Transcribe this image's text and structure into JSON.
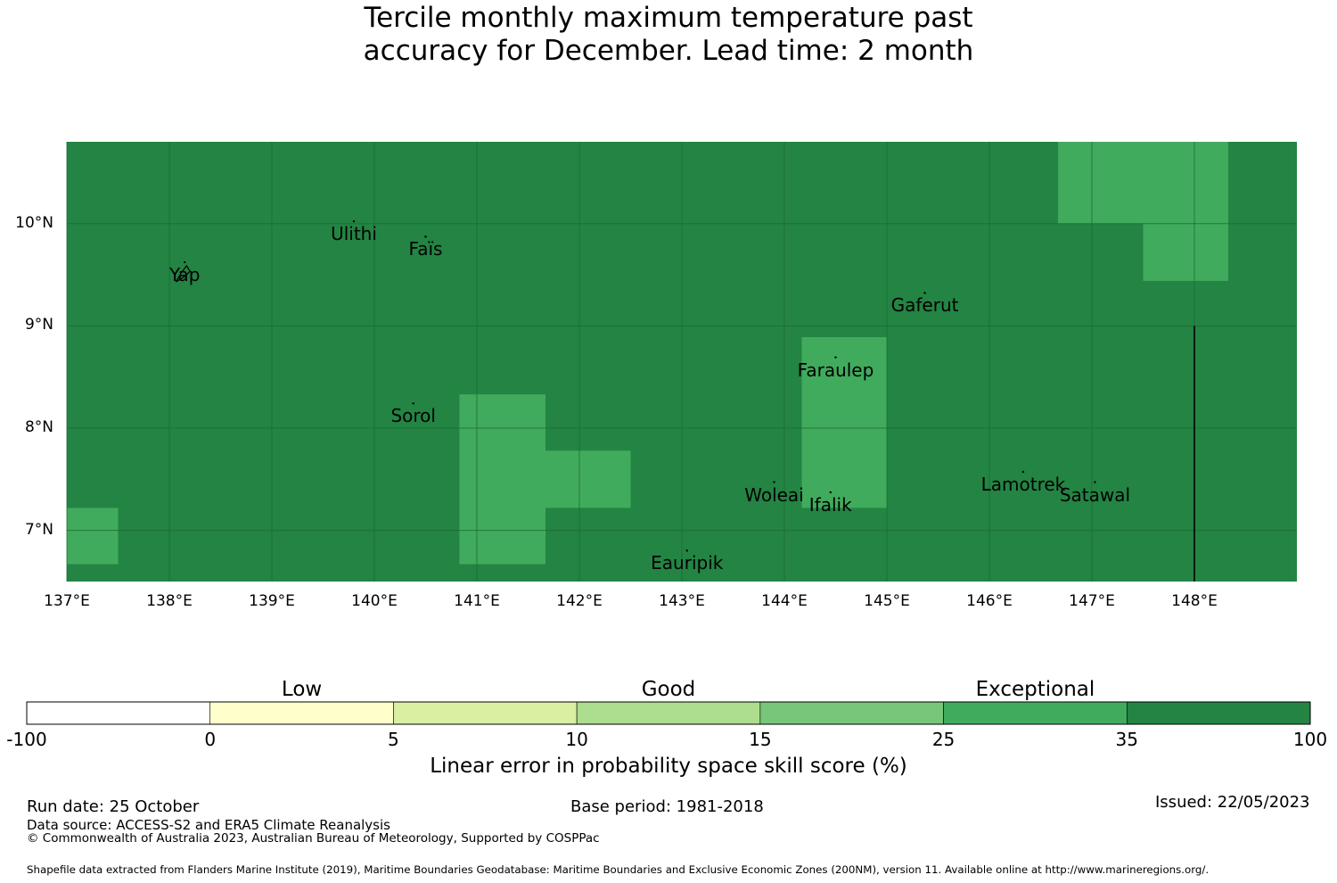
{
  "title": {
    "line1": "Tercile monthly maximum temperature past",
    "line2": "accuracy for December. Lead time: 2 month"
  },
  "map": {
    "lon_range": [
      137,
      149
    ],
    "lat_range": [
      6.5,
      10.8
    ],
    "lat_ticks": [
      {
        "value": 10,
        "label": "10°N"
      },
      {
        "value": 9,
        "label": "9°N"
      },
      {
        "value": 8,
        "label": "8°N"
      },
      {
        "value": 7,
        "label": "7°N"
      }
    ],
    "lon_ticks": [
      {
        "value": 137,
        "label": "137°E"
      },
      {
        "value": 138,
        "label": "138°E"
      },
      {
        "value": 139,
        "label": "139°E"
      },
      {
        "value": 140,
        "label": "140°E"
      },
      {
        "value": 141,
        "label": "141°E"
      },
      {
        "value": 142,
        "label": "142°E"
      },
      {
        "value": 143,
        "label": "143°E"
      },
      {
        "value": 144,
        "label": "144°E"
      },
      {
        "value": 145,
        "label": "145°E"
      },
      {
        "value": 146,
        "label": "146°E"
      },
      {
        "value": 147,
        "label": "147°E"
      },
      {
        "value": 148,
        "label": "148°E"
      }
    ],
    "background_category": "Exceptional (35 to 100)",
    "cells": [
      {
        "lon": [
          137.0,
          137.5
        ],
        "lat": [
          6.67,
          7.22
        ],
        "category": "25 to 35"
      },
      {
        "lon": [
          140.83,
          141.67
        ],
        "lat": [
          6.67,
          8.33
        ],
        "category": "25 to 35"
      },
      {
        "lon": [
          141.67,
          142.5
        ],
        "lat": [
          7.22,
          7.78
        ],
        "category": "25 to 35"
      },
      {
        "lon": [
          144.17,
          145.0
        ],
        "lat": [
          7.22,
          8.89
        ],
        "category": "25 to 35"
      },
      {
        "lon": [
          146.67,
          148.33
        ],
        "lat": [
          10.0,
          10.8
        ],
        "category": "25 to 35"
      },
      {
        "lon": [
          147.5,
          148.33
        ],
        "lat": [
          9.44,
          10.0
        ],
        "category": "25 to 35"
      }
    ],
    "boundary_line": {
      "lon": 148.0,
      "lat": [
        6.5,
        9.0
      ]
    },
    "places": [
      {
        "name": "Ulithi",
        "lon": 139.8,
        "lat": 9.9
      },
      {
        "name": "Faïs",
        "lon": 140.5,
        "lat": 9.75
      },
      {
        "name": "Yap",
        "lon": 138.15,
        "lat": 9.5
      },
      {
        "name": "Gaferut",
        "lon": 145.37,
        "lat": 9.2
      },
      {
        "name": "Faraulep",
        "lon": 144.5,
        "lat": 8.57
      },
      {
        "name": "Sorol",
        "lon": 140.38,
        "lat": 8.12
      },
      {
        "name": "Woleai",
        "lon": 143.9,
        "lat": 7.35
      },
      {
        "name": "Ifalik",
        "lon": 144.45,
        "lat": 7.25
      },
      {
        "name": "Lamotrek",
        "lon": 146.33,
        "lat": 7.45
      },
      {
        "name": "Satawal",
        "lon": 147.03,
        "lat": 7.35
      },
      {
        "name": "Eauripik",
        "lon": 143.05,
        "lat": 6.68
      }
    ]
  },
  "colorbar": {
    "categories": [
      {
        "label": "Low",
        "value": 2.5
      },
      {
        "label": "Good",
        "value": 12.5
      },
      {
        "label": "Exceptional",
        "value": 30
      }
    ],
    "bounds": [
      "-100",
      "0",
      "5",
      "10",
      "15",
      "25",
      "35",
      "100"
    ],
    "colors": [
      "#ffffff",
      "#ffffcc",
      "#d9f0a3",
      "#addd8e",
      "#78c679",
      "#41ab5d",
      "#238443"
    ],
    "label": "Linear error in probability space skill score (%)"
  },
  "colors": {
    "exceptional": "#238443",
    "tier_25_35": "#41ab5d",
    "gridline": "#1a6b33"
  },
  "footer": {
    "run_date": "Run date: 25 October",
    "base_period": "Base period: 1981-2018",
    "issued": "Issued: 22/05/2023",
    "data_source": "Data source: ACCESS-S2 and ERA5 Climate Reanalysis",
    "copyright": "© Commonwealth of Australia 2023, Australian Bureau of Meteorology, Supported by COSPPac",
    "shapefile": "Shapefile data extracted from Flanders Marine Institute (2019), Maritime Boundaries Geodatabase: Maritime Boundaries and Exclusive Economic Zones (200NM), version 11. Available online at http://www.marineregions.org/."
  }
}
